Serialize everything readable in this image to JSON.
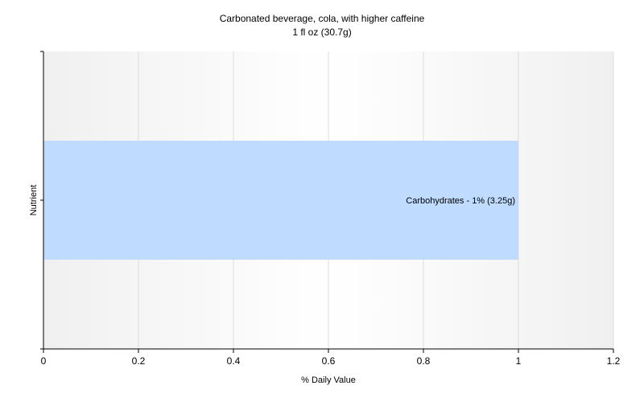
{
  "chart_data": {
    "type": "bar",
    "orientation": "horizontal",
    "title": "Carbonated beverage, cola, with higher caffeine",
    "subtitle": "1 fl oz (30.7g)",
    "xlabel": "% Daily Value",
    "ylabel": "Nutrient",
    "xlim": [
      0,
      1.2
    ],
    "xticks": [
      "0",
      "0.2",
      "0.4",
      "0.6",
      "0.8",
      "1",
      "1.2"
    ],
    "grid": true,
    "categories": [
      "Carbohydrates"
    ],
    "values": [
      1
    ],
    "data_labels": [
      "Carbohydrates - 1% (3.25g)"
    ],
    "colors": {
      "bar": "#bfdbff",
      "plot_bg_edge": "#f0f0f0",
      "plot_bg_mid": "#ffffff",
      "grid": "#dcdcdc",
      "axis": "#000000"
    }
  }
}
